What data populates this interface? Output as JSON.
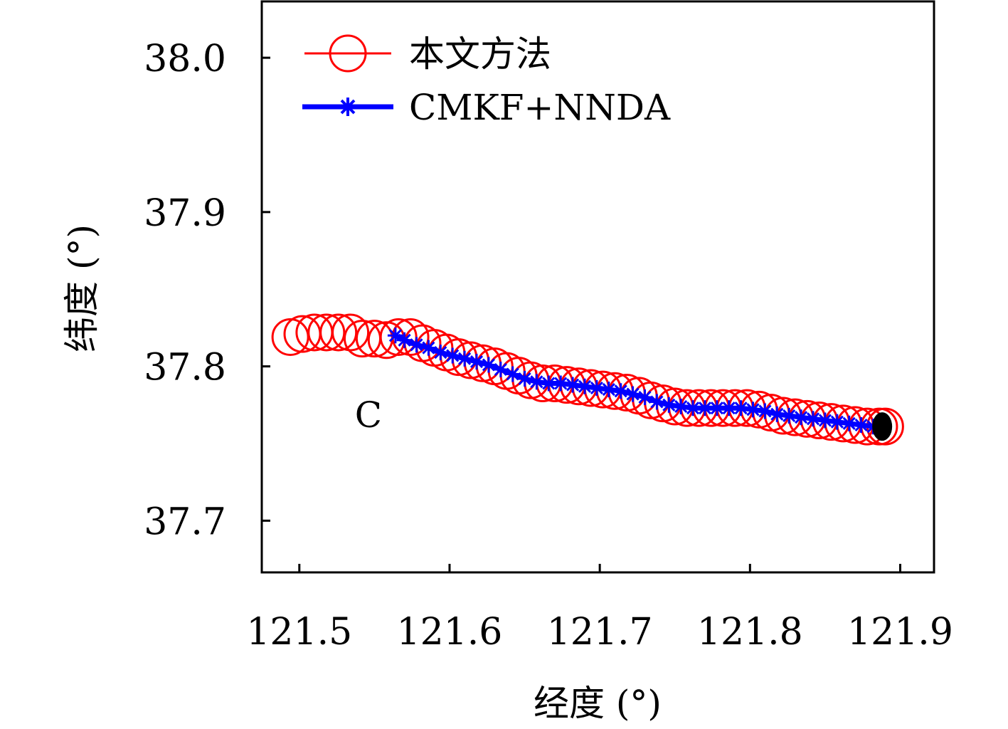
{
  "chart_data": {
    "type": "scatter",
    "xlabel": "经度 (°)",
    "ylabel": "纬度 (°)",
    "xlim": [
      121.475,
      121.9225
    ],
    "ylim": [
      37.6665,
      38.0365
    ],
    "xticks": [
      121.5,
      121.6,
      121.7,
      121.8,
      121.9
    ],
    "xtick_labels": [
      "121.5",
      "121.6",
      "121.7",
      "121.8",
      "121.9"
    ],
    "yticks": [
      37.7,
      37.8,
      37.9,
      38.0
    ],
    "ytick_labels": [
      "37.7",
      "37.8",
      "37.9",
      "38.0"
    ],
    "grid": false,
    "legend_position": "top-left",
    "annotation": {
      "text": "C",
      "x": 121.546,
      "y": 37.769
    },
    "end_marker": {
      "x": 121.888,
      "y": 37.761,
      "color": "#000000"
    },
    "series": [
      {
        "name": "本文方法",
        "color": "#ff0000",
        "marker": "open-circle",
        "points": [
          [
            121.494,
            37.819
          ],
          [
            121.502,
            37.821
          ],
          [
            121.51,
            37.822
          ],
          [
            121.518,
            37.822
          ],
          [
            121.526,
            37.822
          ],
          [
            121.534,
            37.822
          ],
          [
            121.542,
            37.818
          ],
          [
            121.55,
            37.818
          ],
          [
            121.558,
            37.817
          ],
          [
            121.566,
            37.819
          ],
          [
            121.574,
            37.819
          ],
          [
            121.582,
            37.815
          ],
          [
            121.59,
            37.812
          ],
          [
            121.598,
            37.809
          ],
          [
            121.606,
            37.806
          ],
          [
            121.614,
            37.804
          ],
          [
            121.622,
            37.802
          ],
          [
            121.63,
            37.8
          ],
          [
            121.638,
            37.797
          ],
          [
            121.646,
            37.794
          ],
          [
            121.654,
            37.791
          ],
          [
            121.662,
            37.789
          ],
          [
            121.67,
            37.789
          ],
          [
            121.678,
            37.788
          ],
          [
            121.686,
            37.787
          ],
          [
            121.694,
            37.786
          ],
          [
            121.702,
            37.785
          ],
          [
            121.71,
            37.784
          ],
          [
            121.718,
            37.783
          ],
          [
            121.726,
            37.781
          ],
          [
            121.734,
            37.778
          ],
          [
            121.742,
            37.776
          ],
          [
            121.75,
            37.774
          ],
          [
            121.758,
            37.773
          ],
          [
            121.766,
            37.773
          ],
          [
            121.774,
            37.773
          ],
          [
            121.782,
            37.773
          ],
          [
            121.79,
            37.773
          ],
          [
            121.798,
            37.773
          ],
          [
            121.806,
            37.772
          ],
          [
            121.814,
            37.77
          ],
          [
            121.822,
            37.768
          ],
          [
            121.83,
            37.767
          ],
          [
            121.838,
            37.766
          ],
          [
            121.846,
            37.765
          ],
          [
            121.854,
            37.764
          ],
          [
            121.862,
            37.763
          ],
          [
            121.87,
            37.762
          ],
          [
            121.878,
            37.761
          ],
          [
            121.886,
            37.761
          ],
          [
            121.89,
            37.761
          ]
        ]
      },
      {
        "name": "CMKF+NNDA",
        "color": "#0000ff",
        "marker": "asterisk",
        "points": [
          [
            121.564,
            37.82
          ],
          [
            121.57,
            37.817
          ],
          [
            121.578,
            37.814
          ],
          [
            121.586,
            37.812
          ],
          [
            121.594,
            37.809
          ],
          [
            121.602,
            37.807
          ],
          [
            121.61,
            37.805
          ],
          [
            121.618,
            37.803
          ],
          [
            121.626,
            37.801
          ],
          [
            121.634,
            37.798
          ],
          [
            121.642,
            37.795
          ],
          [
            121.65,
            37.792
          ],
          [
            121.658,
            37.79
          ],
          [
            121.666,
            37.789
          ],
          [
            121.674,
            37.789
          ],
          [
            121.682,
            37.788
          ],
          [
            121.69,
            37.787
          ],
          [
            121.698,
            37.786
          ],
          [
            121.706,
            37.785
          ],
          [
            121.714,
            37.784
          ],
          [
            121.722,
            37.782
          ],
          [
            121.73,
            37.78
          ],
          [
            121.738,
            37.777
          ],
          [
            121.746,
            37.775
          ],
          [
            121.754,
            37.774
          ],
          [
            121.762,
            37.773
          ],
          [
            121.77,
            37.773
          ],
          [
            121.778,
            37.773
          ],
          [
            121.786,
            37.773
          ],
          [
            121.794,
            37.773
          ],
          [
            121.802,
            37.772
          ],
          [
            121.81,
            37.771
          ],
          [
            121.818,
            37.769
          ],
          [
            121.826,
            37.768
          ],
          [
            121.834,
            37.767
          ],
          [
            121.842,
            37.766
          ],
          [
            121.85,
            37.765
          ],
          [
            121.858,
            37.764
          ],
          [
            121.866,
            37.763
          ],
          [
            121.874,
            37.762
          ],
          [
            121.882,
            37.761
          ],
          [
            121.888,
            37.761
          ]
        ]
      }
    ]
  }
}
